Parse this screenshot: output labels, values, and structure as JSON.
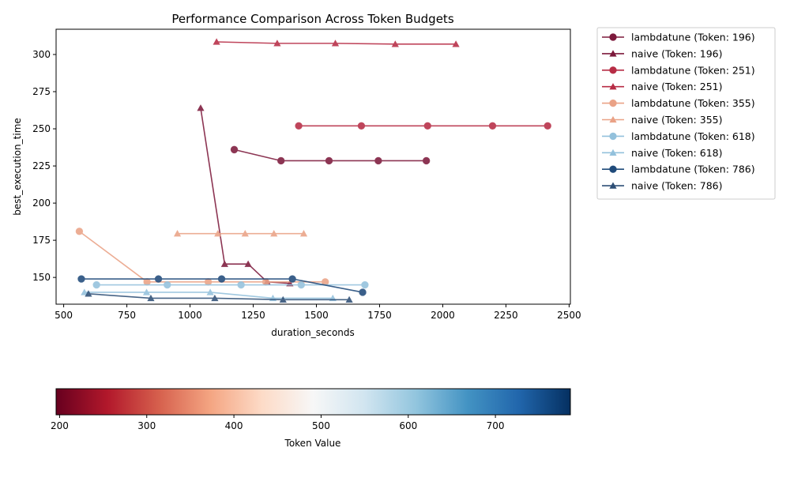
{
  "chart_data": {
    "type": "line",
    "title": "Performance Comparison Across Token Budgets",
    "xlabel": "duration_seconds",
    "ylabel": "best_execution_time",
    "xlim": [
      470,
      2505
    ],
    "ylim": [
      132,
      317
    ],
    "x_ticks": [
      500,
      750,
      1000,
      1250,
      1500,
      1750,
      2000,
      2250,
      2500
    ],
    "y_ticks": [
      150,
      175,
      200,
      225,
      250,
      275,
      300
    ],
    "grid": false,
    "legend_position": "outside-right-top",
    "series": [
      {
        "name": "lambdatune (Token: 196)",
        "token": 196,
        "marker": "circle",
        "color": "#7d1a3c",
        "x": [
          1175,
          1360,
          1550,
          1745,
          1935
        ],
        "y": [
          236,
          228.5,
          228.5,
          228.5,
          228.5
        ]
      },
      {
        "name": "naive (Token: 196)",
        "token": 196,
        "marker": "triangle",
        "color": "#7d1a3c",
        "x": [
          1042,
          1137,
          1230,
          1305,
          1395
        ],
        "y": [
          264,
          159,
          159,
          147,
          146
        ]
      },
      {
        "name": "lambdatune (Token: 251)",
        "token": 251,
        "marker": "circle",
        "color": "#b72c45",
        "x": [
          1430,
          1678,
          1940,
          2197,
          2415
        ],
        "y": [
          252,
          252,
          252,
          252,
          252
        ]
      },
      {
        "name": "naive (Token: 251)",
        "token": 251,
        "marker": "triangle",
        "color": "#b72c45",
        "x": [
          1105,
          1345,
          1575,
          1812,
          2052
        ],
        "y": [
          308.5,
          307.5,
          307.5,
          307,
          307
        ]
      },
      {
        "name": "lambdatune (Token: 355)",
        "token": 355,
        "marker": "circle",
        "color": "#eaa286",
        "x": [
          562,
          830,
          1072,
          1300,
          1535
        ],
        "y": [
          181,
          147,
          147,
          147,
          147
        ]
      },
      {
        "name": "naive (Token: 355)",
        "token": 355,
        "marker": "triangle",
        "color": "#eaa286",
        "x": [
          950,
          1110,
          1218,
          1332,
          1450
        ],
        "y": [
          179.5,
          179.5,
          179.5,
          179.5,
          179.5
        ]
      },
      {
        "name": "lambdatune (Token: 618)",
        "token": 618,
        "marker": "circle",
        "color": "#93c1dc",
        "x": [
          630,
          910,
          1202,
          1440,
          1692
        ],
        "y": [
          145,
          145,
          145,
          145,
          145
        ]
      },
      {
        "name": "naive (Token: 618)",
        "token": 618,
        "marker": "triangle",
        "color": "#93c1dc",
        "x": [
          582,
          828,
          1080,
          1328,
          1565
        ],
        "y": [
          140,
          140,
          140,
          136,
          136
        ]
      },
      {
        "name": "lambdatune (Token: 786)",
        "token": 786,
        "marker": "circle",
        "color": "#1f4a7a",
        "x": [
          570,
          875,
          1125,
          1405,
          1683
        ],
        "y": [
          149,
          149,
          149,
          149,
          140
        ]
      },
      {
        "name": "naive (Token: 786)",
        "token": 786,
        "marker": "triangle",
        "color": "#2e4f76",
        "x": [
          598,
          845,
          1098,
          1368,
          1630
        ],
        "y": [
          139,
          136,
          136,
          135,
          135
        ]
      }
    ],
    "colorbar": {
      "label": "Token Value",
      "range": [
        196,
        786
      ],
      "ticks": [
        200,
        300,
        400,
        500,
        600,
        700
      ],
      "colormap": [
        "#67001f",
        "#b2182b",
        "#d6604d",
        "#f4a582",
        "#fddbc7",
        "#f7f7f7",
        "#d1e5f0",
        "#92c5de",
        "#4393c3",
        "#2166ac",
        "#053061"
      ]
    }
  }
}
